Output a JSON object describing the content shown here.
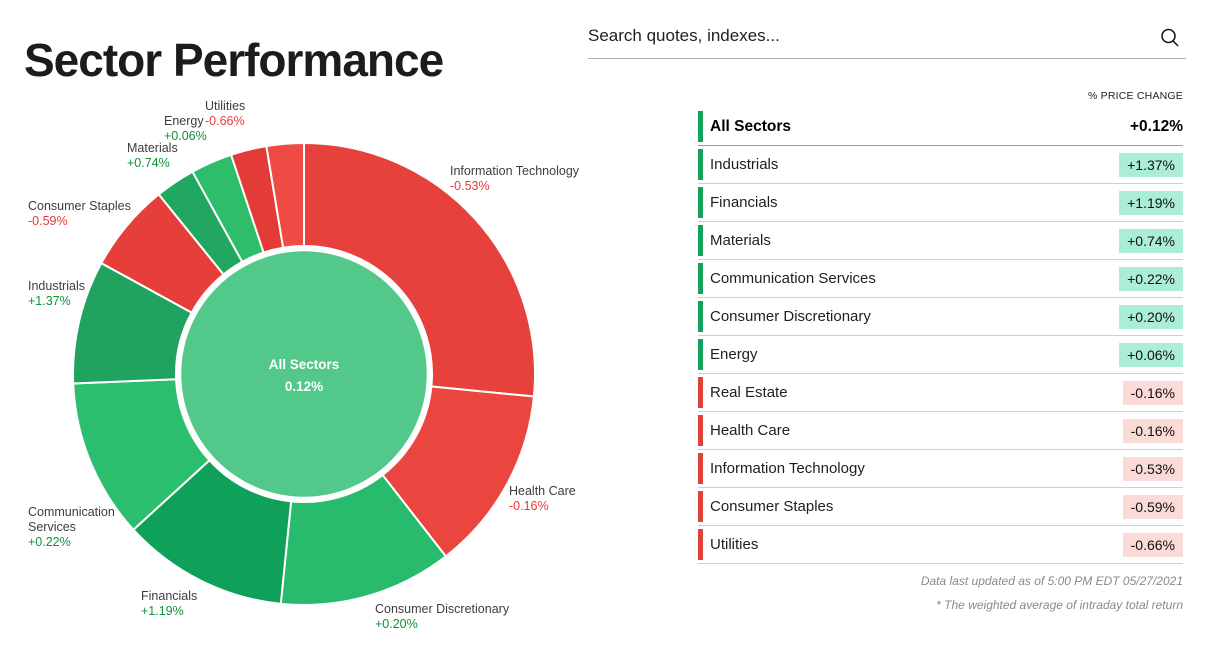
{
  "header": {
    "title": "Sector Performance"
  },
  "search": {
    "placeholder": "Search quotes, indexes..."
  },
  "chart_data": {
    "type": "pie",
    "subtype": "sunburst-donut",
    "legend_position": "around-labels",
    "center": {
      "label": "All Sectors",
      "value": "0.12%",
      "color": "#52C98A"
    },
    "segments": [
      {
        "name": "Information Technology",
        "change": "-0.53%",
        "weight": 26.5,
        "direction": "down",
        "color": "#E6413C",
        "labeled": true
      },
      {
        "name": "Health Care",
        "change": "-0.16%",
        "weight": 12.9,
        "direction": "down",
        "color": "#EA453F",
        "labeled": true
      },
      {
        "name": "Consumer Discretionary",
        "change": "+0.20%",
        "weight": 12.1,
        "direction": "up",
        "color": "#28BB6D",
        "labeled": true
      },
      {
        "name": "Financials",
        "change": "+1.19%",
        "weight": 11.6,
        "direction": "up",
        "color": "#0FA159",
        "labeled": true
      },
      {
        "name": "Communication Services",
        "change": "+0.22%",
        "weight": 11.1,
        "direction": "up",
        "color": "#2CBE6F",
        "labeled": true
      },
      {
        "name": "Industrials",
        "change": "+1.37%",
        "weight": 8.6,
        "direction": "up",
        "color": "#1FA35E",
        "labeled": true
      },
      {
        "name": "Consumer Staples",
        "change": "-0.59%",
        "weight": 6.2,
        "direction": "down",
        "color": "#E63E39",
        "labeled": true
      },
      {
        "name": "Materials",
        "change": "+0.74%",
        "weight": 2.8,
        "direction": "up",
        "color": "#21A75F",
        "labeled": true
      },
      {
        "name": "Energy",
        "change": "+0.06%",
        "weight": 2.9,
        "direction": "up",
        "color": "#2EBD6B",
        "labeled": true
      },
      {
        "name": "Utilities",
        "change": "-0.66%",
        "weight": 2.5,
        "direction": "down",
        "color": "#E33B37",
        "labeled": true
      },
      {
        "name": "Real Estate",
        "change": "-0.16%",
        "weight": 2.6,
        "direction": "down",
        "color": "#EE4B44",
        "labeled": false
      }
    ]
  },
  "table": {
    "column_header": "% PRICE CHANGE",
    "summary": {
      "name": "All Sectors",
      "value": "+0.12%",
      "direction": "up"
    },
    "rows": [
      {
        "name": "Industrials",
        "value": "+1.37%",
        "direction": "up"
      },
      {
        "name": "Financials",
        "value": "+1.19%",
        "direction": "up"
      },
      {
        "name": "Materials",
        "value": "+0.74%",
        "direction": "up"
      },
      {
        "name": "Communication Services",
        "value": "+0.22%",
        "direction": "up"
      },
      {
        "name": "Consumer Discretionary",
        "value": "+0.20%",
        "direction": "up"
      },
      {
        "name": "Energy",
        "value": "+0.06%",
        "direction": "up"
      },
      {
        "name": "Real Estate",
        "value": "-0.16%",
        "direction": "down"
      },
      {
        "name": "Health Care",
        "value": "-0.16%",
        "direction": "down"
      },
      {
        "name": "Information Technology",
        "value": "-0.53%",
        "direction": "down"
      },
      {
        "name": "Consumer Staples",
        "value": "-0.59%",
        "direction": "down"
      },
      {
        "name": "Utilities",
        "value": "-0.66%",
        "direction": "down"
      }
    ]
  },
  "footer": {
    "updated": "Data last updated as of 5:00 PM EDT 05/27/2021",
    "note": "* The weighted average of intraday total return"
  },
  "colors": {
    "positive_bar": "#14A15B",
    "negative_bar": "#DF4238",
    "positive_badge_bg": "#ABEDD6",
    "negative_badge_bg": "#FBDBD7",
    "positive_text": "#0E9239",
    "negative_text": "#E8393D"
  }
}
